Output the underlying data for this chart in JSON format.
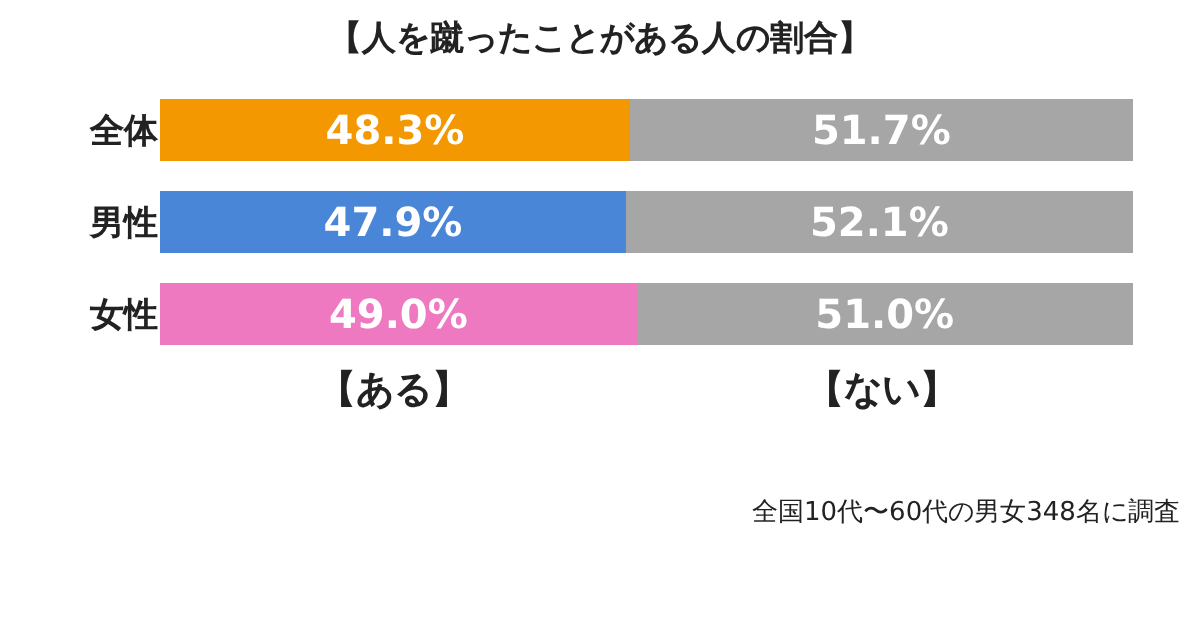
{
  "chart_data": {
    "type": "bar",
    "orientation": "horizontal",
    "stacked": true,
    "title": "【人を蹴ったことがある人の割合】",
    "categories": [
      "全体",
      "男性",
      "女性"
    ],
    "series": [
      {
        "name": "【ある】",
        "colors": [
          "#f39800",
          "#4a86d8",
          "#ee79c0"
        ],
        "values": [
          48.3,
          47.9,
          49.0
        ],
        "value_labels": [
          "48.3%",
          "47.9%",
          "49.0%"
        ]
      },
      {
        "name": "【ない】",
        "color": "#a6a6a6",
        "values": [
          51.7,
          52.1,
          51.0
        ],
        "value_labels": [
          "51.7%",
          "52.1%",
          "51.0%"
        ]
      }
    ],
    "legend": false,
    "annotations": [
      "全国10代〜60代の男女348名に調査"
    ]
  }
}
